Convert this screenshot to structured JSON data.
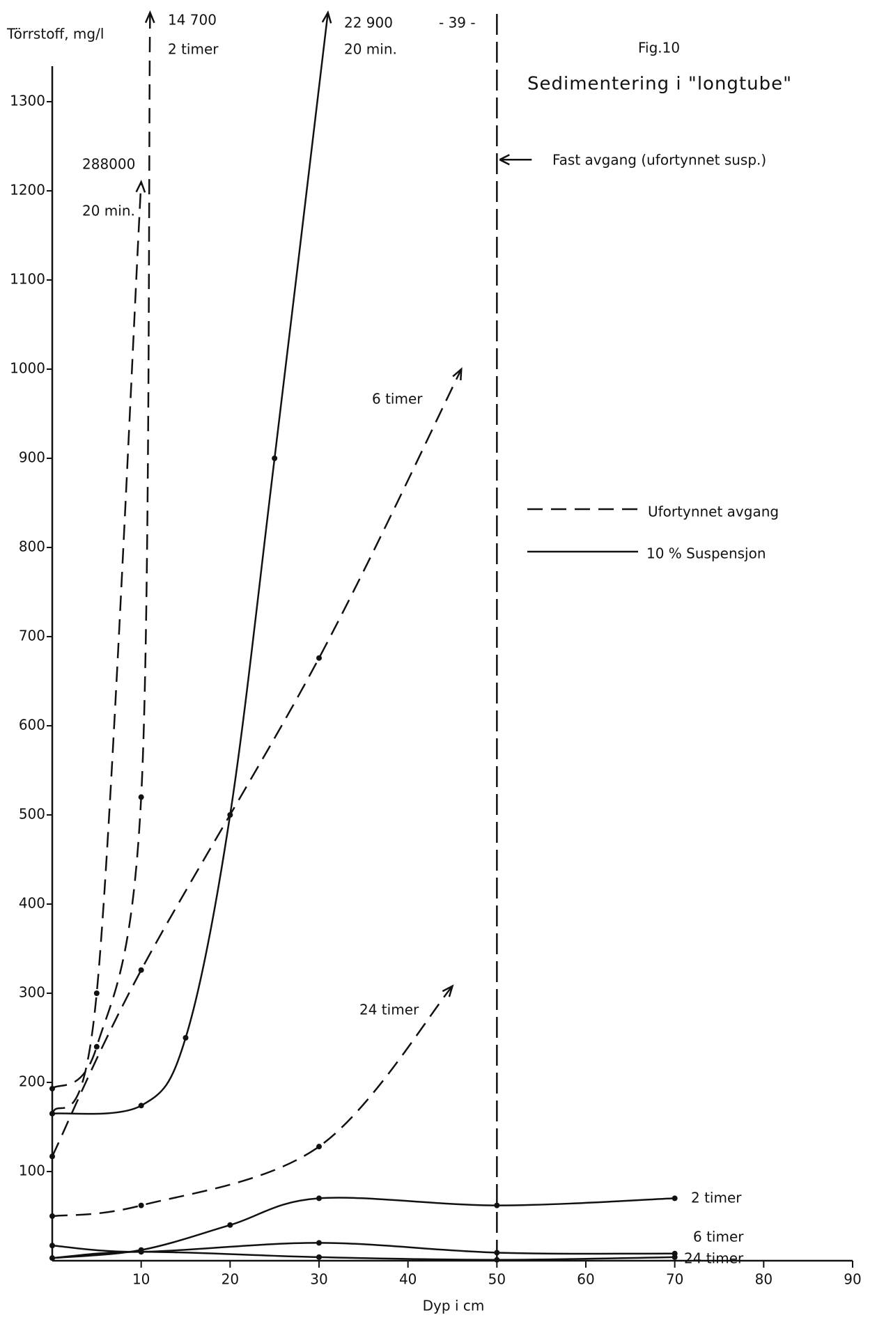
{
  "chart_data": {
    "type": "line",
    "page_number": "- 39 -",
    "figure_label": "Fig.10",
    "title": "Sedimentering i \"longtube\"",
    "y_label": "Törrstoff, mg/l",
    "x_label": "Dyp i cm",
    "xlim": [
      0,
      90
    ],
    "ylim": [
      0,
      1400
    ],
    "xticks": [
      10,
      20,
      30,
      40,
      50,
      60,
      70,
      80,
      90
    ],
    "yticks": [
      100,
      200,
      300,
      400,
      500,
      600,
      700,
      800,
      900,
      1000,
      1100,
      1200,
      1300
    ],
    "color": "#111111",
    "legend": [
      {
        "dashed": true,
        "label": "Ufortynnet avgang"
      },
      {
        "dashed": false,
        "label": "10 % Suspensjon"
      }
    ],
    "reference_line": {
      "x": 50,
      "label": "Fast avgang (ufortynnet susp.)",
      "arrow_y": 1235
    },
    "series": [
      {
        "name": "2 timer",
        "note": "14 700",
        "dashed": true,
        "arrow": true,
        "x": [
          0,
          5,
          10,
          11
        ],
        "values": [
          193,
          240,
          520,
          1400
        ]
      },
      {
        "name": "20 min.",
        "note": "288000",
        "dashed": true,
        "arrow": true,
        "x": [
          0,
          5,
          10
        ],
        "values": [
          165,
          300,
          1210
        ]
      },
      {
        "name": "6 timer",
        "dashed": true,
        "arrow": true,
        "x": [
          0,
          10,
          30,
          46
        ],
        "values": [
          117,
          326,
          676,
          1000
        ]
      },
      {
        "name": "24 timer",
        "dashed": true,
        "arrow": true,
        "x": [
          0,
          10,
          30,
          45
        ],
        "values": [
          50,
          62,
          128,
          308
        ]
      },
      {
        "name": "20 min.",
        "note": "22 900",
        "dashed": false,
        "arrow": true,
        "x": [
          0,
          10,
          15,
          20,
          25,
          31
        ],
        "values": [
          165,
          174,
          250,
          500,
          900,
          1400
        ]
      },
      {
        "name": "2 timer",
        "dashed": false,
        "x": [
          0,
          10,
          20,
          30,
          50,
          70
        ],
        "values": [
          3,
          12,
          40,
          70,
          62,
          70
        ]
      },
      {
        "name": "6 timer",
        "dashed": false,
        "x": [
          0,
          10,
          30,
          50,
          70
        ],
        "values": [
          17,
          10,
          20,
          9,
          8
        ]
      },
      {
        "name": "24 timer",
        "dashed": false,
        "x": [
          0,
          10,
          30,
          50,
          70
        ],
        "values": [
          3,
          10,
          4,
          1,
          4
        ]
      }
    ]
  }
}
